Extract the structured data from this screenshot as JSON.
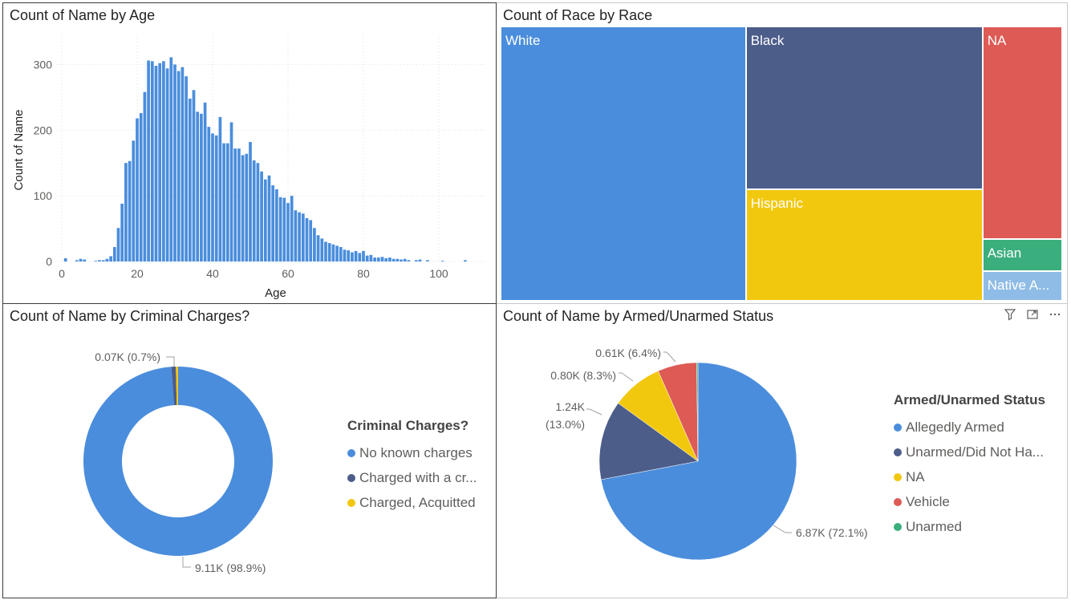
{
  "colors": {
    "blue": "#4a8ddc",
    "navy": "#4c5d8a",
    "yellow": "#f2c80f",
    "red": "#dd5a55",
    "green": "#3aae7c",
    "lightblue": "#8fbce6",
    "axis_text": "#605e5c",
    "grid": "#e1e1e1"
  },
  "histogram": {
    "title": "Count of Name by Age",
    "chart_data": {
      "type": "bar",
      "title": "Count of Name by Age",
      "xlabel": "Age",
      "ylabel": "Count of Name",
      "xlim": [
        0,
        110
      ],
      "ylim": [
        0,
        320
      ],
      "xticks": [
        "0",
        "20",
        "40",
        "60",
        "80",
        "100"
      ],
      "yticks": [
        "0",
        "100",
        "200",
        "300"
      ],
      "grid": true,
      "x": [
        1,
        4,
        5,
        6,
        9,
        10,
        11,
        12,
        13,
        14,
        15,
        16,
        17,
        18,
        19,
        20,
        21,
        22,
        23,
        24,
        25,
        26,
        27,
        28,
        29,
        30,
        31,
        32,
        33,
        34,
        35,
        36,
        37,
        38,
        39,
        40,
        41,
        42,
        43,
        44,
        45,
        46,
        47,
        48,
        49,
        50,
        51,
        52,
        53,
        54,
        55,
        56,
        57,
        58,
        59,
        60,
        61,
        62,
        63,
        64,
        65,
        66,
        67,
        68,
        69,
        70,
        71,
        72,
        73,
        74,
        75,
        76,
        77,
        78,
        79,
        80,
        81,
        82,
        83,
        84,
        85,
        86,
        87,
        88,
        89,
        90,
        91,
        92,
        94,
        95,
        97,
        101,
        107
      ],
      "values": [
        5,
        2,
        4,
        3,
        1,
        2,
        2,
        4,
        8,
        22,
        51,
        88,
        150,
        153,
        184,
        218,
        226,
        258,
        306,
        305,
        298,
        302,
        305,
        294,
        311,
        300,
        290,
        296,
        282,
        248,
        261,
        228,
        225,
        242,
        205,
        195,
        192,
        220,
        180,
        180,
        212,
        172,
        172,
        162,
        164,
        182,
        154,
        150,
        137,
        125,
        131,
        116,
        110,
        98,
        97,
        89,
        100,
        78,
        75,
        73,
        66,
        63,
        51,
        40,
        35,
        30,
        28,
        26,
        24,
        22,
        18,
        17,
        14,
        16,
        13,
        16,
        9,
        10,
        6,
        6,
        7,
        5,
        6,
        4,
        4,
        3,
        4,
        2,
        2,
        3,
        2,
        1,
        2
      ]
    }
  },
  "treemap": {
    "title": "Count of Race by Race",
    "chart_data": {
      "type": "treemap",
      "title": "Count of Race by Race",
      "categories": [
        "White",
        "Black",
        "Hispanic",
        "NA",
        "Asian",
        "Native A..."
      ],
      "values": [
        4220,
        2410,
        1660,
        1060,
        160,
        150
      ]
    }
  },
  "donut": {
    "title": "Count of Name by Criminal Charges?",
    "legend_title": "Criminal Charges?",
    "legend_items": [
      "No known charges",
      "Charged with a cr...",
      "Charged, Acquitted"
    ],
    "labels": [
      "0.07K (0.7%)",
      "9.11K (98.9%)"
    ],
    "chart_data": {
      "type": "donut",
      "title": "Count of Name by Criminal Charges?",
      "categories": [
        "No known charges",
        "Charged with a cr...",
        "Charged, Acquitted"
      ],
      "values": [
        9110,
        70,
        35
      ]
    }
  },
  "pie": {
    "title": "Count of Name by Armed/Unarmed Status",
    "legend_title": "Armed/Unarmed Status",
    "legend_items": [
      "Allegedly Armed",
      "Unarmed/Did Not Ha...",
      "NA",
      "Vehicle",
      "Unarmed"
    ],
    "labels": {
      "vehicle": "0.61K (6.4%)",
      "na": "0.80K (8.3%)",
      "unarmed_line1": "1.24K",
      "unarmed_line2": "(13.0%)",
      "armed": "6.87K (72.1%)"
    },
    "icons": [
      "filter-icon",
      "focus-mode-icon",
      "more-options-icon"
    ],
    "chart_data": {
      "type": "pie",
      "title": "Count of Name by Armed/Unarmed Status",
      "categories": [
        "Allegedly Armed",
        "Unarmed/Did Not Ha...",
        "NA",
        "Vehicle",
        "Unarmed"
      ],
      "values": [
        6870,
        1240,
        800,
        610,
        20
      ]
    }
  }
}
